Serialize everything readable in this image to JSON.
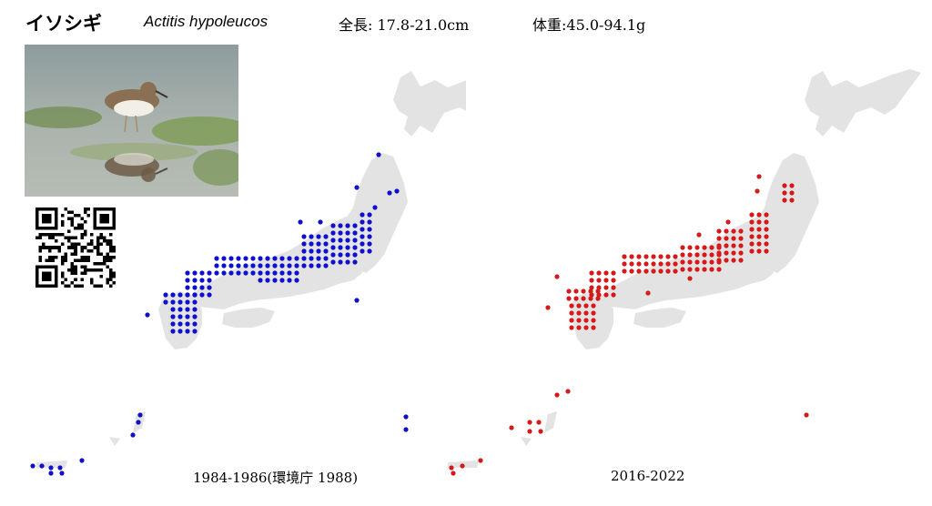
{
  "header": {
    "japanese_name": "イソシギ",
    "scientific_name": "Actitis hypoleucos",
    "length_text": "全長: 17.8-21.0cm",
    "weight_text": "体重:45.0-94.1g"
  },
  "photo": {
    "subject": "common sandpiper standing in shallow water with reflection"
  },
  "qr": {
    "icon": "qr-code-icon"
  },
  "maps": [
    {
      "id": "left",
      "caption": "1984-1986(環境庁 1988)",
      "dot_color": "#1010c8"
    },
    {
      "id": "right",
      "caption": "2016-2022",
      "dot_color": "#d41a1a"
    }
  ],
  "colors": {
    "land": "#e3e3e3",
    "background": "#ffffff"
  }
}
